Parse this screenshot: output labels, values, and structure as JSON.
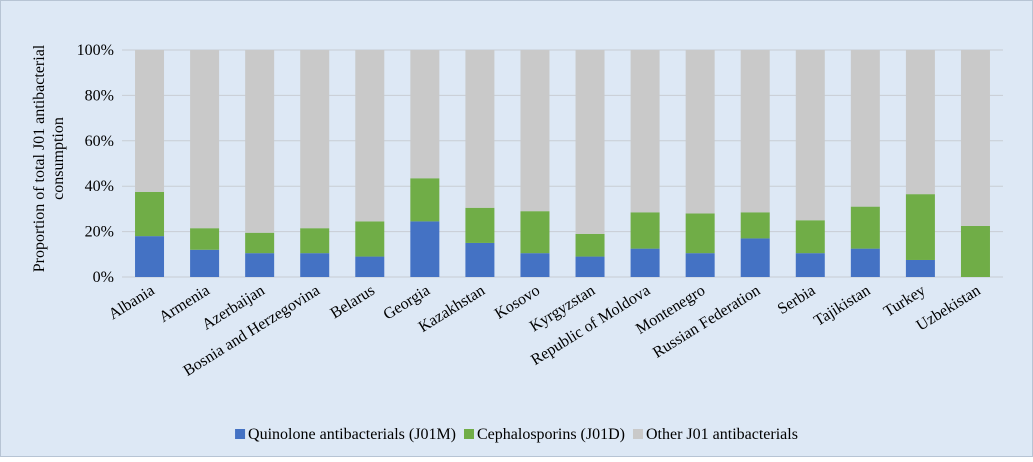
{
  "chart_data": {
    "type": "stacked_bar",
    "ylabel": [
      "Proportion of total J01 antibacterial",
      "consumption"
    ],
    "categories": [
      "Albania",
      "Armenia",
      "Azerbaijan",
      "Bosnia and Herzegovina",
      "Belarus",
      "Georgia",
      "Kazakhstan",
      "Kosovo",
      "Kyrgyzstan",
      "Republic of Moldova",
      "Montenegro",
      "Russian Federation",
      "Serbia",
      "Tajikistan",
      "Turkey",
      "Uzbekistan"
    ],
    "series": [
      {
        "name": "Quinolone antibacterials (J01M)",
        "color": "#4472c4",
        "values": [
          18,
          12,
          10.5,
          10.5,
          9,
          24.5,
          15,
          10.5,
          9,
          12.5,
          10.5,
          17,
          10.5,
          12.5,
          7.5,
          0
        ]
      },
      {
        "name": "Cephalosporins (J01D)",
        "color": "#70ad47",
        "values": [
          19.5,
          9.5,
          9,
          11,
          15.5,
          19,
          15.5,
          18.5,
          10,
          16,
          17.5,
          11.5,
          14.5,
          18.5,
          29,
          22.5
        ]
      },
      {
        "name": "Other J01 antibacterials",
        "color": "#c9c9c9",
        "values": [
          62.5,
          78.5,
          80.5,
          78.5,
          75.5,
          56.5,
          69.5,
          71,
          81,
          71.5,
          72,
          71.5,
          75,
          69,
          63.5,
          77.5
        ]
      }
    ],
    "ylim": [
      0,
      100
    ],
    "yticks": [
      {
        "value": 0,
        "label": "0%"
      },
      {
        "value": 20,
        "label": "20%"
      },
      {
        "value": 40,
        "label": "40%"
      },
      {
        "value": 60,
        "label": "60%"
      },
      {
        "value": 80,
        "label": "80%"
      },
      {
        "value": 100,
        "label": "100%"
      }
    ],
    "grid": true,
    "legend": "bottom"
  }
}
